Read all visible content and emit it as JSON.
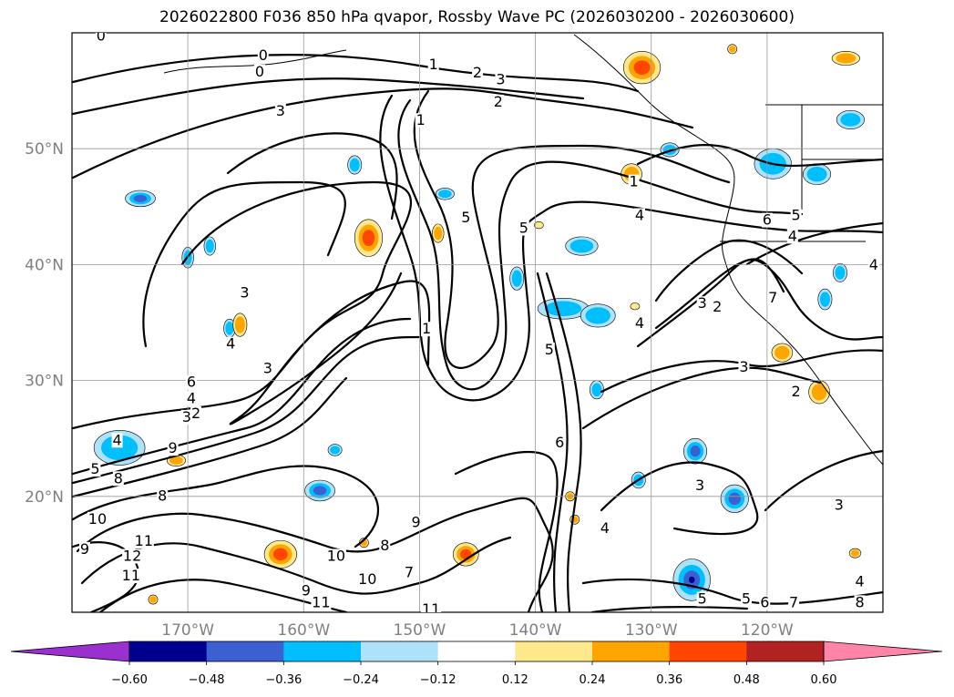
{
  "title": "2026022800 F036 850 hPa qvapor, Rossby Wave PC (2026030200 - 2026030600)",
  "map": {
    "lon_labels": [
      "170°W",
      "160°W",
      "150°W",
      "140°W",
      "130°W",
      "120°W"
    ],
    "lat_labels": [
      "50°N",
      "40°N",
      "30°N",
      "20°N"
    ],
    "lon_range": [
      -180,
      -110
    ],
    "lat_range": [
      10,
      60
    ],
    "gridlines": true
  },
  "contour_labels": [
    {
      "text": "0",
      "lon": -177.5,
      "lat": 59.5
    },
    {
      "text": "0",
      "lon": -163.5,
      "lat": 57.8
    },
    {
      "text": "0",
      "lon": -163.8,
      "lat": 56.4
    },
    {
      "text": "1",
      "lon": -148.8,
      "lat": 57.0
    },
    {
      "text": "2",
      "lon": -145.0,
      "lat": 56.3
    },
    {
      "text": "3",
      "lon": -143.0,
      "lat": 55.7
    },
    {
      "text": "2",
      "lon": -143.2,
      "lat": 53.8
    },
    {
      "text": "3",
      "lon": -162.0,
      "lat": 53.0
    },
    {
      "text": "1",
      "lon": -149.9,
      "lat": 52.2
    },
    {
      "text": "1",
      "lon": -131.5,
      "lat": 46.9
    },
    {
      "text": "4",
      "lon": -131.0,
      "lat": 44.0
    },
    {
      "text": "5",
      "lon": -146.0,
      "lat": 43.8
    },
    {
      "text": "5",
      "lon": -141.0,
      "lat": 42.9
    },
    {
      "text": "6",
      "lon": -120.0,
      "lat": 43.6
    },
    {
      "text": "5",
      "lon": -117.5,
      "lat": 44.0
    },
    {
      "text": "4",
      "lon": -117.8,
      "lat": 42.2
    },
    {
      "text": "4",
      "lon": -110.8,
      "lat": 39.7
    },
    {
      "text": "3",
      "lon": -165.1,
      "lat": 37.3
    },
    {
      "text": "7",
      "lon": -119.5,
      "lat": 36.9
    },
    {
      "text": "3",
      "lon": -125.6,
      "lat": 36.4
    },
    {
      "text": "2",
      "lon": -124.3,
      "lat": 36.1
    },
    {
      "text": "4",
      "lon": -131.0,
      "lat": 34.7
    },
    {
      "text": "1",
      "lon": -149.4,
      "lat": 34.2
    },
    {
      "text": "5",
      "lon": -138.8,
      "lat": 32.4
    },
    {
      "text": "4",
      "lon": -166.3,
      "lat": 32.9
    },
    {
      "text": "3",
      "lon": -163.1,
      "lat": 30.8
    },
    {
      "text": "3",
      "lon": -122.0,
      "lat": 30.9
    },
    {
      "text": "6",
      "lon": -169.7,
      "lat": 29.6
    },
    {
      "text": "2",
      "lon": -117.5,
      "lat": 28.8
    },
    {
      "text": "4",
      "lon": -169.7,
      "lat": 28.2
    },
    {
      "text": "3",
      "lon": -170.1,
      "lat": 26.6
    },
    {
      "text": "2",
      "lon": -169.3,
      "lat": 26.9
    },
    {
      "text": "4",
      "lon": -176.1,
      "lat": 24.6
    },
    {
      "text": "6",
      "lon": -137.9,
      "lat": 24.4
    },
    {
      "text": "9",
      "lon": -171.3,
      "lat": 23.9
    },
    {
      "text": "5",
      "lon": -178.0,
      "lat": 22.1
    },
    {
      "text": "8",
      "lon": -176.0,
      "lat": 21.3
    },
    {
      "text": "3",
      "lon": -125.8,
      "lat": 20.7
    },
    {
      "text": "8",
      "lon": -172.2,
      "lat": 19.8
    },
    {
      "text": "10",
      "lon": -177.8,
      "lat": 17.8
    },
    {
      "text": "9",
      "lon": -150.3,
      "lat": 17.5
    },
    {
      "text": "4",
      "lon": -134.0,
      "lat": 17.0
    },
    {
      "text": "11",
      "lon": -173.8,
      "lat": 15.9
    },
    {
      "text": "8",
      "lon": -153.0,
      "lat": 15.5
    },
    {
      "text": "9",
      "lon": -178.9,
      "lat": 15.2
    },
    {
      "text": "12",
      "lon": -174.8,
      "lat": 14.6
    },
    {
      "text": "10",
      "lon": -157.2,
      "lat": 14.6
    },
    {
      "text": "7",
      "lon": -150.9,
      "lat": 13.2
    },
    {
      "text": "11",
      "lon": -174.9,
      "lat": 12.9
    },
    {
      "text": "10",
      "lon": -154.5,
      "lat": 12.6
    },
    {
      "text": "9",
      "lon": -159.8,
      "lat": 11.6
    },
    {
      "text": "11",
      "lon": -158.5,
      "lat": 10.6
    },
    {
      "text": "5",
      "lon": -125.6,
      "lat": 10.9
    },
    {
      "text": "5",
      "lon": -121.8,
      "lat": 10.9
    },
    {
      "text": "6",
      "lon": -120.2,
      "lat": 10.6
    },
    {
      "text": "7",
      "lon": -117.7,
      "lat": 10.6
    },
    {
      "text": "4",
      "lon": -112.0,
      "lat": 12.4
    },
    {
      "text": "8",
      "lon": -112.0,
      "lat": 10.6
    },
    {
      "text": "3",
      "lon": -113.8,
      "lat": 19.0
    },
    {
      "text": "11",
      "lon": -149.0,
      "lat": 10.0
    }
  ],
  "shading": {
    "levels": [
      -0.6,
      -0.48,
      -0.36,
      -0.24,
      -0.12,
      0.12,
      0.24,
      0.36,
      0.48,
      0.6
    ],
    "colors": [
      "#9b30d0",
      "#000090",
      "#3c5fd2",
      "#00bfff",
      "#aee2fa",
      "#ffffff",
      "#fde88c",
      "#ffa500",
      "#ff4500",
      "#b22222",
      "#ff85a8"
    ],
    "blobs": [
      {
        "lon": -154.4,
        "lat": 42.3,
        "rlon": 1.2,
        "rlat": 1.6,
        "v": 0.45
      },
      {
        "lon": -162.0,
        "lat": 15.0,
        "rlon": 1.4,
        "rlat": 1.2,
        "v": 0.4
      },
      {
        "lon": -158.6,
        "lat": 20.5,
        "rlon": 1.3,
        "rlat": 0.9,
        "v": -0.4
      },
      {
        "lon": -126.5,
        "lat": 12.8,
        "rlon": 1.6,
        "rlat": 1.8,
        "v": -0.5
      },
      {
        "lon": -126.2,
        "lat": 23.9,
        "rlon": 1.0,
        "rlat": 1.1,
        "v": -0.42
      },
      {
        "lon": -122.8,
        "lat": 19.8,
        "rlon": 1.2,
        "rlat": 1.2,
        "v": -0.38
      },
      {
        "lon": -175.9,
        "lat": 24.2,
        "rlon": 2.2,
        "rlat": 1.5,
        "v": -0.32
      },
      {
        "lon": -174.1,
        "lat": 45.7,
        "rlon": 1.3,
        "rlat": 0.7,
        "v": -0.38
      },
      {
        "lon": -137.6,
        "lat": 36.2,
        "rlon": 2.2,
        "rlat": 0.9,
        "v": -0.3
      },
      {
        "lon": -134.6,
        "lat": 35.6,
        "rlon": 1.5,
        "rlat": 1.0,
        "v": -0.28
      },
      {
        "lon": -136.0,
        "lat": 41.6,
        "rlon": 1.4,
        "rlat": 0.8,
        "v": -0.3
      },
      {
        "lon": -119.5,
        "lat": 48.7,
        "rlon": 1.6,
        "rlat": 1.3,
        "v": -0.35
      },
      {
        "lon": -112.8,
        "lat": 52.5,
        "rlon": 1.2,
        "rlat": 0.8,
        "v": -0.32
      },
      {
        "lon": -115.7,
        "lat": 47.8,
        "rlon": 1.2,
        "rlat": 0.9,
        "v": -0.3
      },
      {
        "lon": -141.6,
        "lat": 38.8,
        "rlon": 0.6,
        "rlat": 1.0,
        "v": -0.3
      },
      {
        "lon": -166.4,
        "lat": 34.5,
        "rlon": 0.5,
        "rlat": 0.8,
        "v": -0.3
      },
      {
        "lon": -168.1,
        "lat": 41.6,
        "rlon": 0.5,
        "rlat": 0.8,
        "v": -0.3
      },
      {
        "lon": -147.8,
        "lat": 46.1,
        "rlon": 0.8,
        "rlat": 0.5,
        "v": -0.3
      },
      {
        "lon": -157.3,
        "lat": 24.0,
        "rlon": 0.6,
        "rlat": 0.5,
        "v": -0.3
      },
      {
        "lon": -134.7,
        "lat": 29.2,
        "rlon": 0.6,
        "rlat": 0.8,
        "v": -0.3
      },
      {
        "lon": -115.0,
        "lat": 37.0,
        "rlon": 0.6,
        "rlat": 0.9,
        "v": -0.3
      },
      {
        "lon": -113.7,
        "lat": 39.3,
        "rlon": 0.6,
        "rlat": 0.8,
        "v": -0.28
      },
      {
        "lon": -128.4,
        "lat": 49.9,
        "rlon": 0.8,
        "rlat": 0.6,
        "v": -0.28
      },
      {
        "lon": -131.1,
        "lat": 21.4,
        "rlon": 0.6,
        "rlat": 0.7,
        "v": -0.28
      },
      {
        "lon": -155.6,
        "lat": 48.6,
        "rlon": 0.6,
        "rlat": 0.8,
        "v": -0.28
      },
      {
        "lon": -170.0,
        "lat": 40.6,
        "rlon": 0.5,
        "rlat": 0.9,
        "v": -0.28
      },
      {
        "lon": -130.8,
        "lat": 57.0,
        "rlon": 1.6,
        "rlat": 1.4,
        "v": 0.36
      },
      {
        "lon": -131.7,
        "lat": 47.8,
        "rlon": 0.9,
        "rlat": 0.9,
        "v": 0.34
      },
      {
        "lon": -113.2,
        "lat": 57.8,
        "rlon": 1.2,
        "rlat": 0.6,
        "v": 0.34
      },
      {
        "lon": -118.7,
        "lat": 32.4,
        "rlon": 0.9,
        "rlat": 0.8,
        "v": 0.33
      },
      {
        "lon": -115.5,
        "lat": 29.0,
        "rlon": 0.9,
        "rlat": 1.0,
        "v": 0.34
      },
      {
        "lon": -165.5,
        "lat": 34.8,
        "rlon": 0.6,
        "rlat": 1.0,
        "v": 0.3
      },
      {
        "lon": -146.0,
        "lat": 15.0,
        "rlon": 1.1,
        "rlat": 1.0,
        "v": 0.42
      },
      {
        "lon": -171.0,
        "lat": 23.1,
        "rlon": 0.8,
        "rlat": 0.5,
        "v": 0.3
      },
      {
        "lon": -148.4,
        "lat": 42.7,
        "rlon": 0.5,
        "rlat": 0.8,
        "v": 0.28
      },
      {
        "lon": -173.0,
        "lat": 11.1,
        "rlon": 0.4,
        "rlat": 0.4,
        "v": 0.3
      },
      {
        "lon": -137.0,
        "lat": 20.0,
        "rlon": 0.4,
        "rlat": 0.4,
        "v": 0.28
      },
      {
        "lon": -136.6,
        "lat": 18.0,
        "rlon": 0.4,
        "rlat": 0.4,
        "v": 0.28
      },
      {
        "lon": -112.4,
        "lat": 15.1,
        "rlon": 0.5,
        "rlat": 0.4,
        "v": 0.3
      },
      {
        "lon": -154.8,
        "lat": 16.0,
        "rlon": 0.4,
        "rlat": 0.4,
        "v": 0.28
      },
      {
        "lon": -139.7,
        "lat": 43.4,
        "rlon": 0.4,
        "rlat": 0.3,
        "v": 0.2
      },
      {
        "lon": -131.4,
        "lat": 36.4,
        "rlon": 0.4,
        "rlat": 0.3,
        "v": 0.2
      },
      {
        "lon": -123.0,
        "lat": 58.6,
        "rlon": 0.4,
        "rlat": 0.4,
        "v": 0.3
      }
    ]
  },
  "colorbar": {
    "tick_labels": [
      "-0.60",
      "-0.48",
      "-0.36",
      "-0.24",
      "-0.12",
      "0.12",
      "0.24",
      "0.36",
      "0.48",
      "0.60"
    ],
    "extend": "both"
  }
}
